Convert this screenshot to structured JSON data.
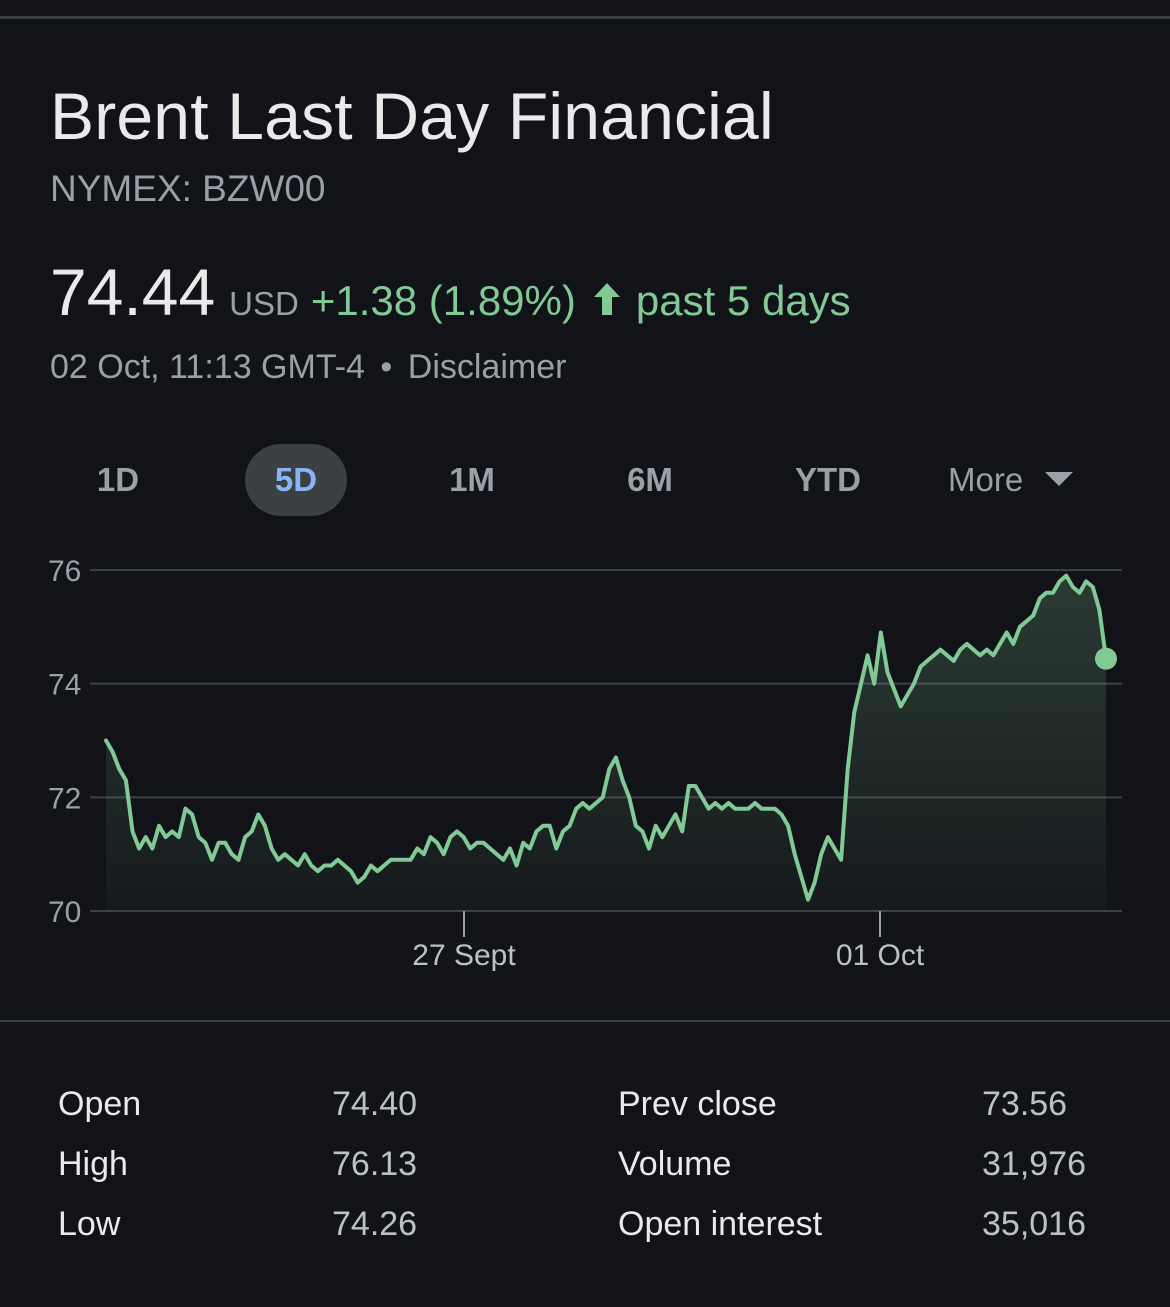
{
  "header": {
    "title": "Brent Last Day Financial",
    "ticker": "NYMEX: BZW00"
  },
  "quote": {
    "price": "74.44",
    "currency": "USD",
    "change": "+1.38 (1.89%)",
    "direction_icon": "arrow-up-icon",
    "period": "past 5 days",
    "timestamp": "02 Oct, 11:13 GMT-4",
    "separator": "•",
    "disclaimer": "Disclaimer"
  },
  "ranges": {
    "items": [
      {
        "label": "1D",
        "active": false
      },
      {
        "label": "5D",
        "active": true
      },
      {
        "label": "1M",
        "active": false
      },
      {
        "label": "6M",
        "active": false
      },
      {
        "label": "YTD",
        "active": false
      }
    ],
    "more_label": "More",
    "more_icon": "caret-down-icon"
  },
  "colors": {
    "background": "#121318",
    "accent_positive": "#81c995",
    "active_tab_text": "#8ab4f8",
    "active_tab_bg": "#3c4043",
    "muted_text": "#9aa0a6"
  },
  "chart_data": {
    "type": "area",
    "title": "",
    "xlabel": "",
    "ylabel": "",
    "ylim": [
      70,
      76
    ],
    "yticks": [
      76,
      74,
      72,
      70
    ],
    "xticks": [
      "27 Sept",
      "01 Oct"
    ],
    "grid": true,
    "series": [
      {
        "values": [
          73.0,
          72.8,
          72.5,
          72.3,
          71.4,
          71.1,
          71.3,
          71.1,
          71.5,
          71.3,
          71.4,
          71.3,
          71.8,
          71.7,
          71.3,
          71.2,
          70.9,
          71.2,
          71.2,
          71.0,
          70.9,
          71.3,
          71.4,
          71.7,
          71.5,
          71.1,
          70.9,
          71.0,
          70.9,
          70.8,
          71.0,
          70.8,
          70.7,
          70.8,
          70.8,
          70.9,
          70.8,
          70.7,
          70.5,
          70.6,
          70.8,
          70.7,
          70.8,
          70.9,
          70.9,
          70.9,
          70.9,
          71.1,
          71.0,
          71.3,
          71.2,
          71.0,
          71.3,
          71.4,
          71.3,
          71.1,
          71.2,
          71.2,
          71.1,
          71.0,
          70.9,
          71.1,
          70.8,
          71.2,
          71.1,
          71.4,
          71.5,
          71.5,
          71.1,
          71.4,
          71.5,
          71.8,
          71.9,
          71.8,
          71.9,
          72.0,
          72.5,
          72.7,
          72.3,
          72.0,
          71.5,
          71.4,
          71.1,
          71.5,
          71.3,
          71.5,
          71.7,
          71.4,
          72.2,
          72.2,
          72.0,
          71.8,
          71.9,
          71.8,
          71.9,
          71.8,
          71.8,
          71.8,
          71.9,
          71.8,
          71.8,
          71.8,
          71.7,
          71.5,
          71.0,
          70.6,
          70.2,
          70.5,
          71.0,
          71.3,
          71.1,
          70.9,
          72.5,
          73.5,
          74.0,
          74.5,
          74.0,
          74.9,
          74.2,
          73.9,
          73.6,
          73.8,
          74.0,
          74.3,
          74.4,
          74.5,
          74.6,
          74.5,
          74.4,
          74.6,
          74.7,
          74.6,
          74.5,
          74.6,
          74.5,
          74.7,
          74.9,
          74.7,
          75.0,
          75.1,
          75.2,
          75.5,
          75.6,
          75.6,
          75.8,
          75.9,
          75.7,
          75.6,
          75.8,
          75.7,
          75.3,
          74.44
        ]
      }
    ],
    "last_value": 74.44
  },
  "stats": {
    "left": [
      {
        "label": "Open",
        "value": "74.40"
      },
      {
        "label": "High",
        "value": "76.13"
      },
      {
        "label": "Low",
        "value": "74.26"
      }
    ],
    "right": [
      {
        "label": "Prev close",
        "value": "73.56"
      },
      {
        "label": "Volume",
        "value": "31,976"
      },
      {
        "label": "Open interest",
        "value": "35,016"
      }
    ]
  }
}
